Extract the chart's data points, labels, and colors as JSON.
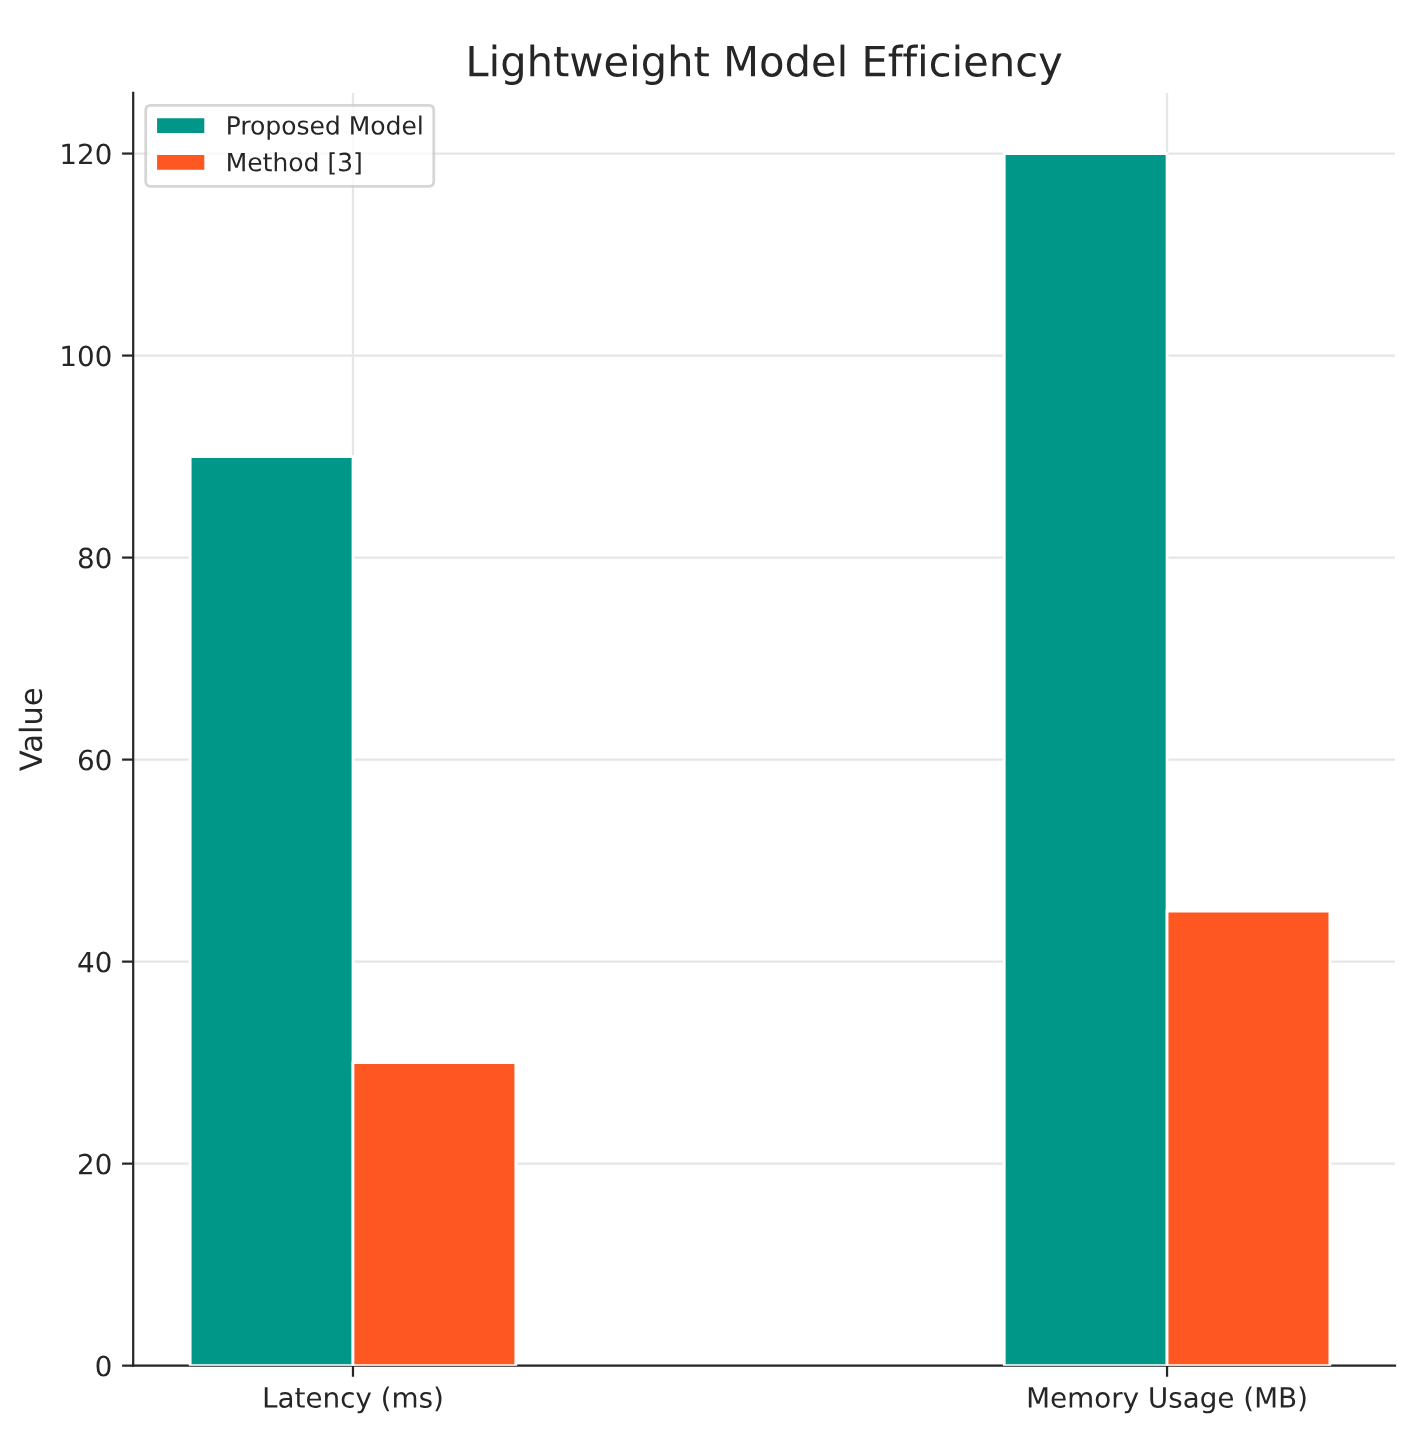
{
  "chart_data": {
    "type": "bar",
    "title": "Lightweight Model Efficiency",
    "ylabel": "Value",
    "categories": [
      "Latency (ms)",
      "Memory Usage (MB)"
    ],
    "series": [
      {
        "name": "Proposed Model",
        "color": "#009688",
        "values": [
          90,
          120
        ]
      },
      {
        "name": "Method [3]",
        "color": "#ff5722",
        "values": [
          30,
          45
        ]
      }
    ],
    "ylim": [
      0,
      126
    ],
    "yticks": [
      0,
      20,
      40,
      60,
      80,
      100,
      120
    ],
    "grid": true,
    "legend": "top left"
  }
}
